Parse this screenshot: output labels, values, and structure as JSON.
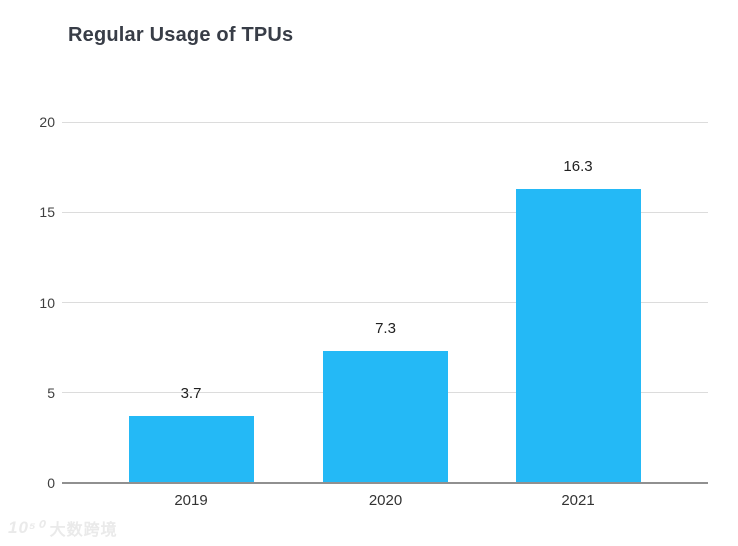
{
  "chart_data": {
    "type": "bar",
    "title": "Regular Usage of TPUs",
    "categories": [
      "2019",
      "2020",
      "2021"
    ],
    "values": [
      3.7,
      7.3,
      16.3
    ],
    "value_labels": [
      "3.7",
      "7.3",
      "16.3"
    ],
    "xlabel": "",
    "ylabel": "",
    "yticks": [
      0,
      5,
      10,
      15,
      20
    ],
    "ylim": [
      0,
      20
    ],
    "grid": true,
    "legend": "none",
    "bar_color": "#24b9f6"
  },
  "colors": {
    "bar": "#24b9f6",
    "gridline": "#dcdcdc",
    "baseline": "#909090",
    "title_text": "#383d47",
    "axis_text": "#3f3f3f",
    "value_text": "#212121",
    "watermark_text": "#eaeaea"
  },
  "watermark": {
    "logo": "10⁵⁰",
    "text": "大数跨境"
  }
}
